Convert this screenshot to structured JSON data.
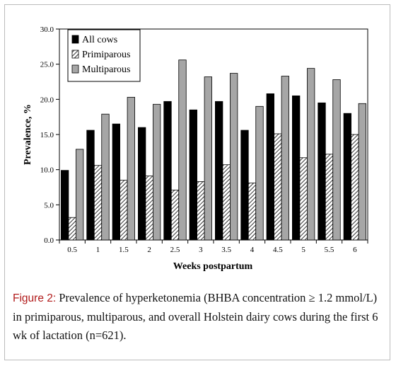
{
  "chart_data": {
    "type": "bar",
    "ylabel": "Prevalence, %",
    "xlabel": "Weeks postpartum",
    "ylim": [
      0,
      30
    ],
    "yticks": [
      "0.0",
      "5.0",
      "10.0",
      "15.0",
      "20.0",
      "25.0",
      "30.0"
    ],
    "grid": false,
    "legend_position": "top-left",
    "categories": [
      "0.5",
      "1",
      "1.5",
      "2",
      "2.5",
      "3",
      "3.5",
      "4",
      "4.5",
      "5",
      "5.5",
      "6"
    ],
    "series": [
      {
        "name": "All cows",
        "fill": "black",
        "values": [
          9.9,
          15.6,
          16.5,
          16.0,
          19.7,
          18.5,
          19.7,
          15.6,
          20.8,
          20.5,
          19.5,
          18.0
        ]
      },
      {
        "name": "Primiparous",
        "fill": "hatch",
        "values": [
          3.2,
          10.6,
          8.5,
          9.1,
          7.1,
          8.3,
          10.7,
          8.1,
          15.1,
          11.7,
          12.2,
          15.0
        ]
      },
      {
        "name": "Multiparous",
        "fill": "gray",
        "values": [
          12.9,
          17.9,
          20.3,
          19.3,
          25.6,
          23.2,
          23.7,
          19.0,
          23.3,
          24.4,
          22.8,
          19.4
        ]
      }
    ],
    "colors": {
      "black": "#000000",
      "gray": "#a6a6a6",
      "hatch_line": "#000000"
    }
  },
  "caption": {
    "label": "Figure 2:",
    "text": " Prevalence of hyperketonemia (BHBA concentration ≥ 1.2 mmol/L) in primiparous, multiparous, and overall Holstein dairy cows during the first 6 wk of lactation (n=621)."
  }
}
